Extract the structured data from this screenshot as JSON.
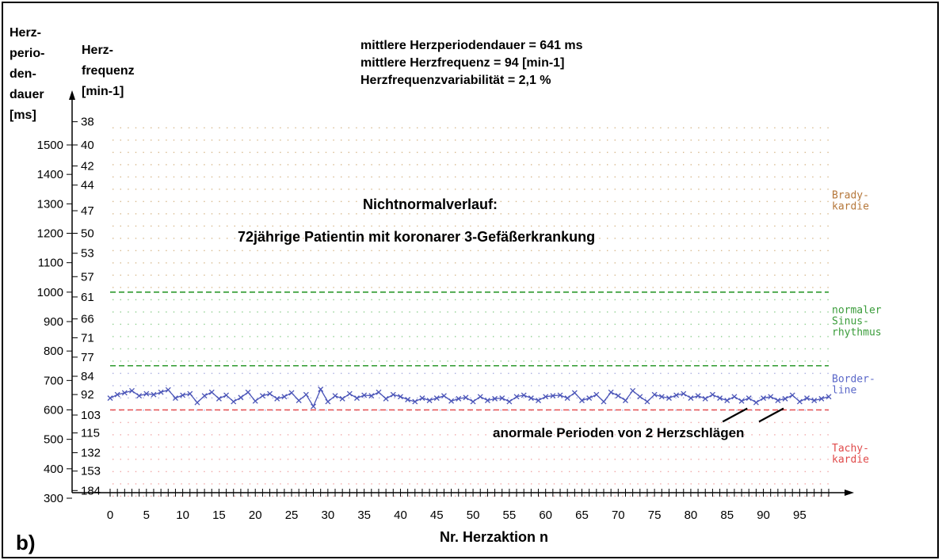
{
  "chart_data": {
    "type": "line",
    "panel_label": "b)",
    "left_axis_title_lines": [
      "Herz-",
      "perio-",
      "den-",
      "dauer",
      "[ms]"
    ],
    "mid_axis_title_lines": [
      "Herz-",
      "frequenz",
      "[min-1]"
    ],
    "stats_lines": [
      "mittlere Herzperiodendauer = 641 ms",
      "mittlere Herzfrequenz = 94 [min-1]",
      "Herzfrequenzvariabilität = 2,1 %"
    ],
    "title": "Nichtnormalverlauf:",
    "subtitle": "72jährige Patientin mit koronarer 3-Gefäßerkrankung",
    "xlabel": "Nr. Herzaktion n",
    "xlim": [
      0,
      99
    ],
    "ylim": [
      300,
      1650
    ],
    "x_ticks": [
      "0",
      "5",
      "10",
      "15",
      "20",
      "25",
      "30",
      "35",
      "40",
      "45",
      "50",
      "55",
      "60",
      "65",
      "70",
      "75",
      "80",
      "85",
      "90",
      "95"
    ],
    "y_ticks_ms": [
      "1500",
      "1400",
      "1300",
      "1200",
      "1100",
      "1000",
      "900",
      "800",
      "700",
      "600",
      "500",
      "400",
      "300"
    ],
    "y_ticks_freq": [
      "38",
      "40",
      "42",
      "44",
      "47",
      "50",
      "53",
      "57",
      "61",
      "66",
      "71",
      "77",
      "84",
      "92",
      "103",
      "115",
      "132",
      "153",
      "184"
    ],
    "zones": [
      {
        "lines": [
          "Brady-",
          "kardie"
        ],
        "color": "#b5773a",
        "at_ms": 1300
      },
      {
        "lines": [
          "normaler",
          "Sinus-",
          "rhythmus"
        ],
        "color": "#3a9c3a",
        "at_ms": 890
      },
      {
        "lines": [
          "Border-",
          "line"
        ],
        "color": "#5a67c8",
        "at_ms": 675
      },
      {
        "lines": [
          "Tachy-",
          "kardie"
        ],
        "color": "#e04a4a",
        "at_ms": 440
      }
    ],
    "thresholds": [
      {
        "value": 1000,
        "color": "#2e9a2e"
      },
      {
        "value": 750,
        "color": "#2e9a2e"
      },
      {
        "value": 600,
        "color": "#e85050"
      }
    ],
    "annotation": "anormale Perioden von 2 Herzschlägen",
    "annotation_marks_x": [
      88,
      93
    ],
    "series": [
      {
        "color": "#4b55b8",
        "values": [
          640,
          652,
          658,
          665,
          648,
          655,
          652,
          660,
          668,
          640,
          650,
          655,
          625,
          648,
          660,
          638,
          650,
          628,
          642,
          660,
          630,
          648,
          655,
          638,
          645,
          658,
          632,
          652,
          612,
          670,
          628,
          648,
          638,
          655,
          640,
          650,
          648,
          660,
          638,
          652,
          645,
          635,
          628,
          640,
          632,
          640,
          648,
          630,
          638,
          642,
          628,
          645,
          632,
          638,
          640,
          628,
          645,
          650,
          640,
          632,
          645,
          648,
          650,
          640,
          658,
          632,
          640,
          652,
          628,
          660,
          648,
          632,
          665,
          645,
          628,
          652,
          645,
          640,
          650,
          655,
          640,
          648,
          638,
          652,
          640,
          632,
          645,
          630,
          640,
          625,
          640,
          645,
          632,
          638,
          650,
          628,
          640,
          632,
          638,
          645
        ]
      }
    ]
  }
}
